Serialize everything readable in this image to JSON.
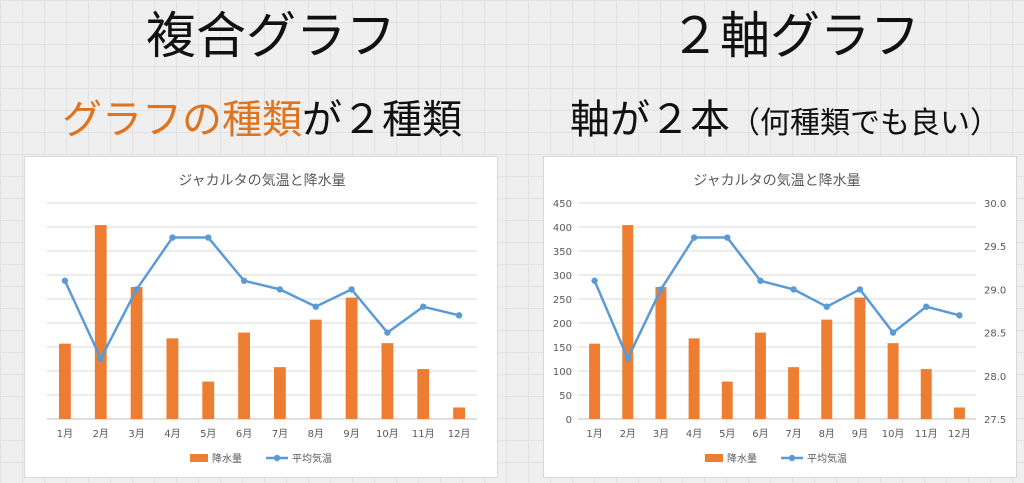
{
  "left": {
    "heading": "複合グラフ",
    "sub_accent": "グラフの種類",
    "sub_rest": "が２種類"
  },
  "right": {
    "heading": "２軸グラフ",
    "sub_main": "軸が２本",
    "sub_paren": "（何種類でも良い）"
  },
  "colors": {
    "bar": "#ed7d31",
    "line": "#5b9bd5",
    "accent": "#e0731d"
  },
  "chart_data": [
    {
      "type": "bar",
      "title": "ジャカルタの気温と降水量",
      "categories": [
        "1月",
        "2月",
        "3月",
        "4月",
        "5月",
        "6月",
        "7月",
        "8月",
        "9月",
        "10月",
        "11月",
        "12月"
      ],
      "series": [
        {
          "name": "降水量",
          "type": "bar",
          "axis": "left",
          "values": [
            157,
            404,
            275,
            168,
            78,
            180,
            108,
            207,
            253,
            158,
            104,
            24
          ]
        },
        {
          "name": "平均気温",
          "type": "line",
          "axis": "right",
          "values": [
            29.1,
            28.2,
            29.0,
            29.6,
            29.6,
            29.1,
            29.0,
            28.8,
            29.0,
            28.5,
            28.8,
            28.7
          ]
        }
      ],
      "ylim": [
        0,
        450
      ],
      "y2lim": [
        27.5,
        30.0
      ],
      "show_y_ticks": false,
      "show_y2_ticks": false,
      "legend": "bottom",
      "grid": true
    },
    {
      "type": "bar",
      "title": "ジャカルタの気温と降水量",
      "categories": [
        "1月",
        "2月",
        "3月",
        "4月",
        "5月",
        "6月",
        "7月",
        "8月",
        "9月",
        "10月",
        "11月",
        "12月"
      ],
      "series": [
        {
          "name": "降水量",
          "type": "bar",
          "axis": "left",
          "values": [
            157,
            404,
            275,
            168,
            78,
            180,
            108,
            207,
            253,
            158,
            104,
            24
          ]
        },
        {
          "name": "平均気温",
          "type": "line",
          "axis": "right",
          "values": [
            29.1,
            28.2,
            29.0,
            29.6,
            29.6,
            29.1,
            29.0,
            28.8,
            29.0,
            28.5,
            28.8,
            28.7
          ]
        }
      ],
      "ylim": [
        0,
        450
      ],
      "y2lim": [
        27.5,
        30.0
      ],
      "y_ticks": [
        "0",
        "50",
        "100",
        "150",
        "200",
        "250",
        "300",
        "350",
        "400",
        "450"
      ],
      "y2_ticks": [
        "27.5",
        "28.0",
        "28.5",
        "29.0",
        "29.5",
        "30.0"
      ],
      "show_y_ticks": true,
      "show_y2_ticks": true,
      "legend": "bottom",
      "grid": true
    }
  ]
}
